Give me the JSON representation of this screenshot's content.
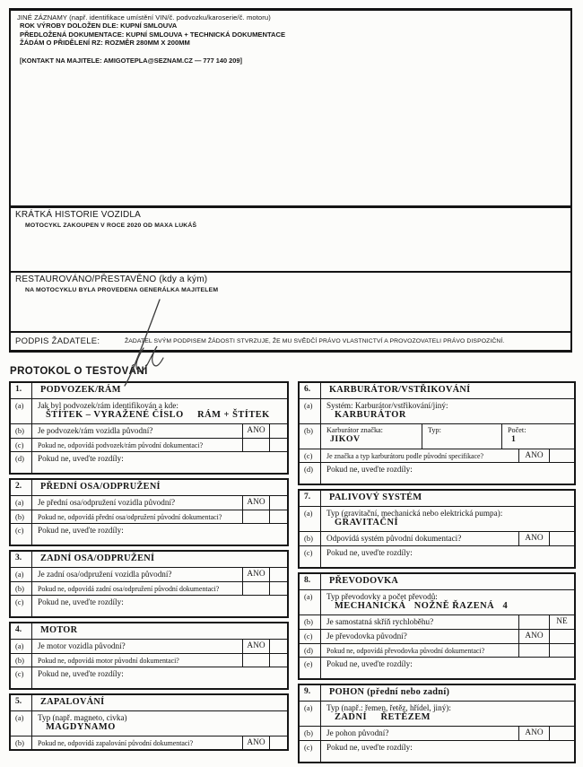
{
  "top_box": {
    "header": "JINÉ ZÁZNAMY (např. identifikace umístění VIN/č. podvozku/karoserie/č. motoru)",
    "lines": [
      "ROK VÝROBY DOLOŽEN DLE: KUPNÍ SMLOUVA",
      "PŘEDLOŽENÁ DOKUMENTACE: KUPNÍ SMLOUVA + TECHNICKÁ DOKUMENTACE",
      "ŽÁDÁM O PŘIDĚLENÍ RZ: ROZMĚR 280MM X 200MM"
    ],
    "contact": "[KONTAKT NA MAJITELE: AMIGOTEPLA@SEZNAM.CZ — 777 140 209]"
  },
  "history_box": {
    "header": "KRÁTKÁ HISTORIE VOZIDLA",
    "entry": "MOTOCYKL ZAKOUPEN V ROCE 2020 OD MAXA LUKÁŠ"
  },
  "restored_box": {
    "header": "RESTAUROVÁNO/PŘESTAVĚNO (kdy a kým)",
    "entry": "NA MOTOCYKLU BYLA PROVEDENA GENERÁLKA MAJITELEM"
  },
  "signature_row": {
    "label": "PODPIS ŽADATELE:",
    "declaration": "ŽADATEL SVÝM PODPISEM ŽÁDOSTI STVRZUJE, ŽE MU SVĚDČÍ PRÁVO VLASTNICTVÍ A PROVOZOVATELI PRÁVO DISPOZIČNÍ."
  },
  "protocol": {
    "title": "PROTOKOL O TESTOVÁNÍ",
    "columns": [
      {
        "side": "left",
        "sections": [
          {
            "num": "1.",
            "title": "PODVOZEK/RÁM",
            "rows": [
              {
                "label": "(a)",
                "type": "value",
                "text": "Jak byl podvozek/rám identifikován a kde:",
                "value": "ŠTÍTEK – VYRAŽENÉ ČÍSLO     RÁM + ŠTÍTEK"
              },
              {
                "label": "(b)",
                "type": "q",
                "text": "Je podvozek/rám vozidla původní?",
                "ans": "ANO",
                "ans2": ""
              },
              {
                "label": "(c)",
                "type": "q",
                "fine": true,
                "text": "Pokud ne, odpovídá podvozek/rám původní dokumentaci?",
                "ans": "",
                "ans2": ""
              },
              {
                "label": "(d)",
                "type": "free",
                "text": "Pokud ne, uveďte rozdíly:"
              }
            ]
          },
          {
            "num": "2.",
            "title": "PŘEDNÍ OSA/ODPRUŽENÍ",
            "rows": [
              {
                "label": "(a)",
                "type": "q",
                "text": "Je přední osa/odpružení vozidla původní?",
                "ans": "ANO",
                "ans2": ""
              },
              {
                "label": "(b)",
                "type": "q",
                "fine": true,
                "text": "Pokud ne, odpovídá přední osa/odpružení původní dokumentaci?",
                "ans": "",
                "ans2": ""
              },
              {
                "label": "(c)",
                "type": "free",
                "text": "Pokud ne, uveďte rozdíly:"
              }
            ]
          },
          {
            "num": "3.",
            "title": "ZADNÍ OSA/ODPRUŽENÍ",
            "rows": [
              {
                "label": "(a)",
                "type": "q",
                "text": "Je zadní osa/odpružení vozidla původní?",
                "ans": "ANO",
                "ans2": ""
              },
              {
                "label": "(b)",
                "type": "q",
                "fine": true,
                "text": "Pokud ne, odpovídá zadní osa/odpružení původní dokumentaci?",
                "ans": "",
                "ans2": ""
              },
              {
                "label": "(c)",
                "type": "free",
                "text": "Pokud ne, uveďte rozdíly:"
              }
            ]
          },
          {
            "num": "4.",
            "title": "MOTOR",
            "rows": [
              {
                "label": "(a)",
                "type": "q",
                "text": "Je motor vozidla původní?",
                "ans": "ANO",
                "ans2": ""
              },
              {
                "label": "(b)",
                "type": "q",
                "fine": true,
                "text": "Pokud ne, odpovídá motor původní dokumentaci?",
                "ans": "",
                "ans2": ""
              },
              {
                "label": "(c)",
                "type": "free",
                "text": "Pokud ne, uveďte rozdíly:"
              }
            ]
          },
          {
            "num": "5.",
            "title": "ZAPALOVÁNÍ",
            "rows": [
              {
                "label": "(a)",
                "type": "value",
                "text": "Typ (např. magneto, civka)",
                "value": "MAGDYNAMO"
              },
              {
                "label": "(b)",
                "type": "q",
                "fine": true,
                "text": "Pokud ne, odpovídá zapalování původní dokumentaci?",
                "ans": "ANO",
                "ans2": ""
              }
            ]
          }
        ]
      },
      {
        "side": "right",
        "sections": [
          {
            "num": "6.",
            "title": "KARBURÁTOR/VSTŘIKOVÁNÍ",
            "rows": [
              {
                "label": "(a)",
                "type": "value",
                "text": "Systém: Karburátor/vstřikování/jiný:",
                "value": "KARBURÁTOR"
              },
              {
                "label": "(b)",
                "type": "sub3",
                "cells": [
                  {
                    "t": "Karburátor značka:",
                    "v": "JIKOV"
                  },
                  {
                    "t": "Typ:",
                    "v": ""
                  },
                  {
                    "t": "Počet:",
                    "v": "1"
                  }
                ]
              },
              {
                "label": "(c)",
                "type": "q",
                "fine": true,
                "text": "Je značka a typ karburátoru podle původní specifikace?",
                "ans": "ANO",
                "ans2": ""
              },
              {
                "label": "(d)",
                "type": "free",
                "text": "Pokud ne, uveďte rozdíly:"
              }
            ]
          },
          {
            "num": "7.",
            "title": "PALIVOVÝ SYSTÉM",
            "rows": [
              {
                "label": "(a)",
                "type": "value",
                "text": "Typ (gravitační, mechanická nebo elektrická pumpa):",
                "value": "GRAVITAČNÍ"
              },
              {
                "label": "(b)",
                "type": "q",
                "text": "Odpovídá systém původní dokumentaci?",
                "ans": "ANO",
                "ans2": ""
              },
              {
                "label": "(c)",
                "type": "free",
                "text": "Pokud ne, uveďte rozdíly:"
              }
            ]
          },
          {
            "num": "8.",
            "title": "PŘEVODOVKA",
            "rows": [
              {
                "label": "(a)",
                "type": "value",
                "text": "Typ převodovky a počet převodů:",
                "value": "MECHANICKÁ   NOŽNĚ ŘAZENÁ   4"
              },
              {
                "label": "(b)",
                "type": "q",
                "text": "Je samostatná skříň rychloběhu?",
                "ans": "",
                "ans2": "NE"
              },
              {
                "label": "(c)",
                "type": "q",
                "text": "Je převodovka původní?",
                "ans": "ANO",
                "ans2": ""
              },
              {
                "label": "(d)",
                "type": "q",
                "fine": true,
                "text": "Pokud ne, odpovídá převodovka původní dokumentaci?",
                "ans": "",
                "ans2": ""
              },
              {
                "label": "(e)",
                "type": "free",
                "text": "Pokud ne, uveďte rozdíly:"
              }
            ]
          },
          {
            "num": "9.",
            "title": "POHON (přední nebo zadní)",
            "rows": [
              {
                "label": "(a)",
                "type": "value",
                "text": "Typ (např.: řemen, řetěz, hřídel, jiný):",
                "value": "ZADNÍ     ŘETĚZEM"
              },
              {
                "label": "(b)",
                "type": "q",
                "text": "Je pohon původní?",
                "ans": "ANO",
                "ans2": ""
              },
              {
                "label": "(c)",
                "type": "free",
                "text": "Pokud ne, uveďte rozdíly:"
              }
            ]
          }
        ]
      }
    ]
  }
}
